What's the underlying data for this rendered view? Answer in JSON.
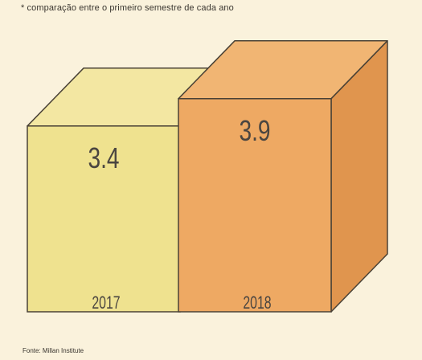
{
  "chart_data": {
    "type": "bar",
    "subtitle": "* comparação entre o primeiro semestre de cada ano",
    "categories": [
      "2017",
      "2018"
    ],
    "values": [
      3.4,
      3.9
    ],
    "value_labels": [
      "3.4",
      "3.9"
    ],
    "colors": {
      "2017": {
        "front": "#efe28f",
        "top": "#f3e7a2",
        "side": "#e3d27a"
      },
      "2018": {
        "front": "#eea963",
        "top": "#f1b573",
        "side": "#e0954e"
      }
    },
    "source": "Fonte: Millan Institute"
  },
  "page_colors": {
    "background": "#faf2dc",
    "outline": "#4a4236"
  }
}
